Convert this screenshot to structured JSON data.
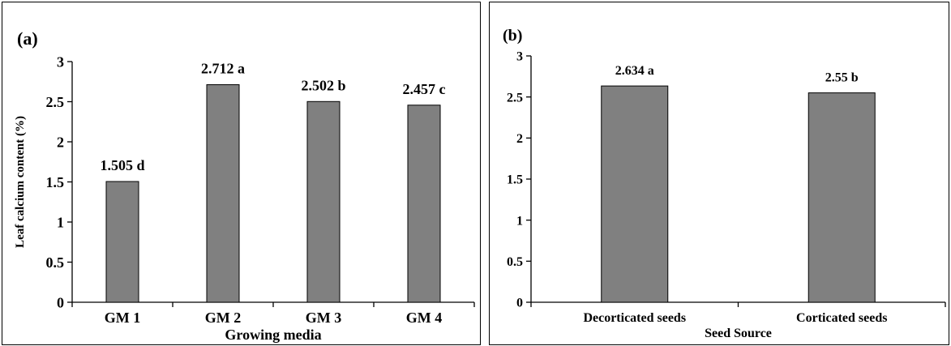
{
  "colors": {
    "bar_fill": "#808080",
    "bar_stroke": "#000000",
    "axis": "#000000"
  },
  "chart_data": [
    {
      "type": "bar",
      "panel_label": "(a)",
      "title": "",
      "xlabel": "Growing media",
      "ylabel": "Leaf calcium content (%)",
      "categories": [
        "GM 1",
        "GM 2",
        "GM 3",
        "GM 4"
      ],
      "values": [
        1.505,
        2.712,
        2.502,
        2.457
      ],
      "data_labels": [
        "1.505 d",
        "2.712 a",
        "2.502 b",
        "2.457 c"
      ],
      "yticks": [
        "0",
        "0.5",
        "1",
        "1.5",
        "2",
        "2.5",
        "3"
      ],
      "ylim": [
        0,
        3
      ],
      "grid": false,
      "legend": "none"
    },
    {
      "type": "bar",
      "panel_label": "(b)",
      "title": "",
      "xlabel": "Seed Source",
      "ylabel": "",
      "categories": [
        "Decorticated seeds",
        "Corticated seeds"
      ],
      "values": [
        2.634,
        2.55
      ],
      "data_labels": [
        "2.634 a",
        "2.55 b"
      ],
      "yticks": [
        "0",
        "0.5",
        "1",
        "1.5",
        "2",
        "2.5",
        "3"
      ],
      "ylim": [
        0,
        3
      ],
      "grid": false,
      "legend": "none"
    }
  ]
}
